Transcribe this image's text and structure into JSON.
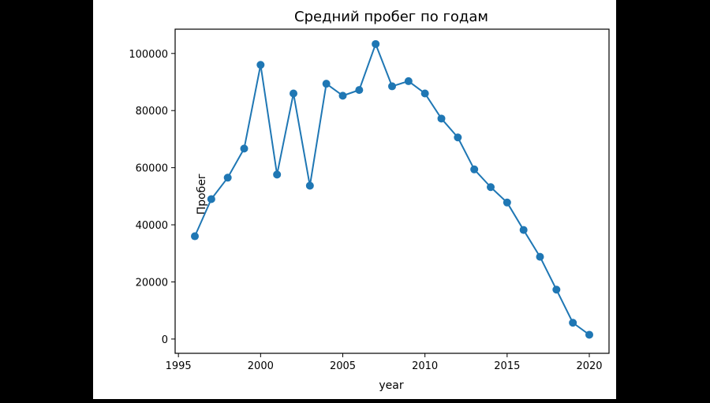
{
  "chart_data": {
    "type": "line",
    "title": "Средний пробег по годам",
    "xlabel": "year",
    "ylabel": "Пробег",
    "xlim": [
      1994.8,
      2021.2
    ],
    "ylim": [
      -5000,
      108500
    ],
    "xticks": [
      1995,
      2000,
      2005,
      2010,
      2015,
      2020
    ],
    "yticks": [
      0,
      20000,
      40000,
      60000,
      80000,
      100000
    ],
    "grid": false,
    "marker": "circle",
    "colors": {
      "series": "#1f77b4",
      "frame": "#000000"
    },
    "series": [
      {
        "x": [
          1996,
          1997,
          1998,
          1999,
          2000,
          2001,
          2002,
          2003,
          2004,
          2005,
          2006,
          2007,
          2008,
          2009,
          2010,
          2011,
          2012,
          2013,
          2014,
          2015,
          2016,
          2017,
          2018,
          2019,
          2020
        ],
        "values": [
          36000,
          49000,
          56500,
          66700,
          96000,
          57600,
          86000,
          53700,
          89400,
          85200,
          87200,
          103300,
          88500,
          90300,
          86000,
          77200,
          70600,
          59400,
          53200,
          47800,
          38200,
          28800,
          17300,
          5700,
          1500
        ]
      }
    ]
  }
}
